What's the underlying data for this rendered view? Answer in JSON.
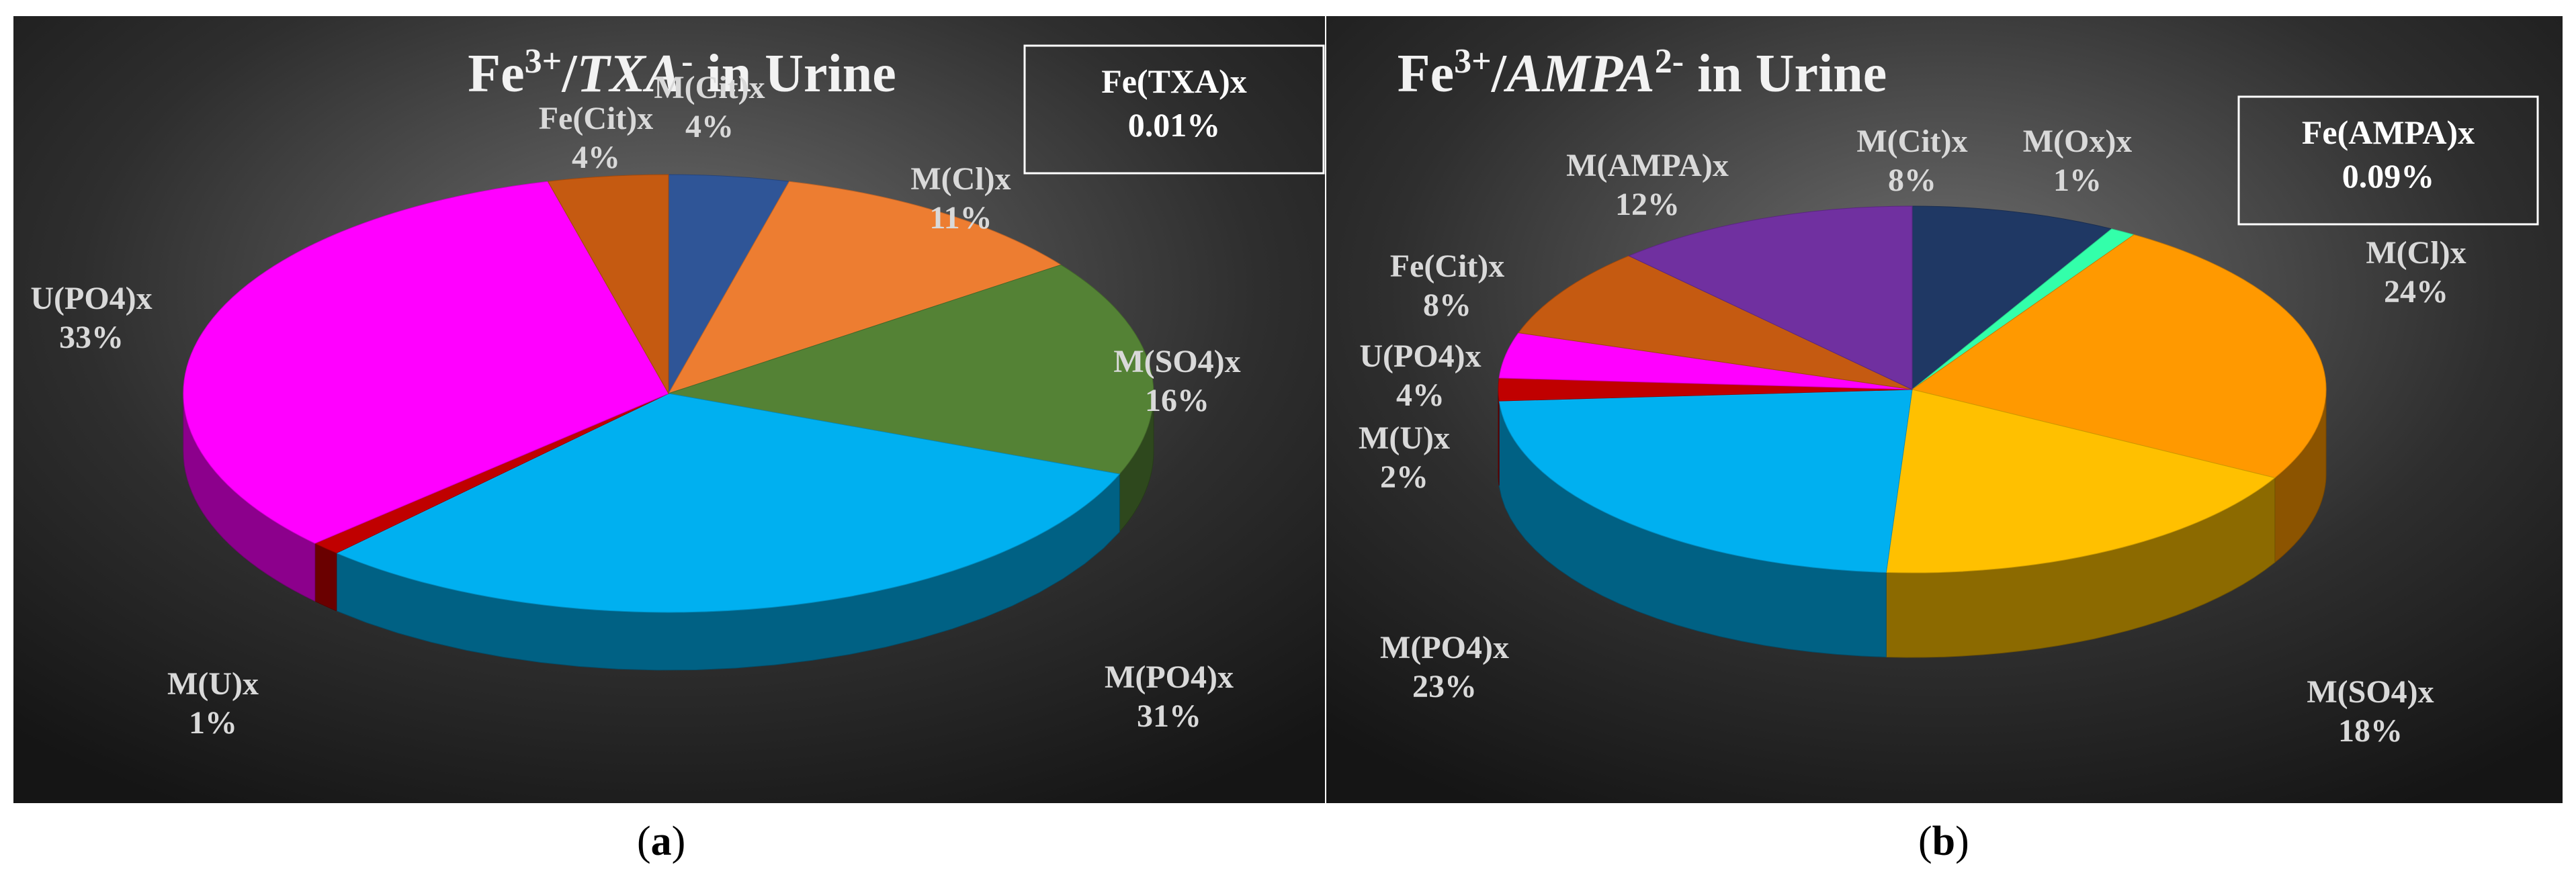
{
  "chart_data": [
    {
      "type": "pie",
      "title": "Fe³⁺/TXA⁻ in Urine",
      "title_parts": {
        "base": "Fe",
        "sup": "3+",
        "sep": "/",
        "ligand": "TXA",
        "charge": "-",
        "rest": " in Urine"
      },
      "note_box": {
        "label": "Fe(TXA)x",
        "value": "0.01%"
      },
      "categories": [
        "M(Cit)x",
        "M(Cl)x",
        "M(SO4)x",
        "M(PO4)x",
        "M(U)x",
        "U(PO4)x",
        "Fe(Cit)x"
      ],
      "values": [
        4,
        11,
        16,
        31,
        1,
        33,
        4
      ],
      "labels": [
        "4%",
        "11%",
        "16%",
        "31%",
        "1%",
        "33%",
        "4%"
      ],
      "colors": [
        "#2f5597",
        "#ed7d31",
        "#548235",
        "#00b0f0",
        "#c00000",
        "#ff00ff",
        "#c55a11"
      ],
      "caption": "a",
      "legend": "none",
      "grid": false
    },
    {
      "type": "pie",
      "title": "Fe³⁺/AMPA²⁻ in Urine",
      "title_parts": {
        "base": "Fe",
        "sup": "3+",
        "sep": "/",
        "ligand": "AMPA",
        "charge": "2-",
        "rest": " in Urine"
      },
      "note_box": {
        "label": "Fe(AMPA)x",
        "value": "0.09%"
      },
      "categories": [
        "M(Cit)x",
        "M(Ox)x",
        "M(Cl)x",
        "M(SO4)x",
        "M(PO4)x",
        "M(U)x",
        "U(PO4)x",
        "Fe(Cit)x",
        "M(AMPA)x"
      ],
      "values": [
        8,
        1,
        24,
        18,
        23,
        2,
        4,
        8,
        12
      ],
      "labels": [
        "8%",
        "1%",
        "24%",
        "18%",
        "23%",
        "2%",
        "4%",
        "8%",
        "12%"
      ],
      "colors": [
        "#1f3864",
        "#33ffaa",
        "#ff9900",
        "#ffc000",
        "#00b0f0",
        "#c00000",
        "#ff00ff",
        "#c55a11",
        "#7030a0"
      ],
      "caption": "b",
      "legend": "none",
      "grid": false
    }
  ]
}
